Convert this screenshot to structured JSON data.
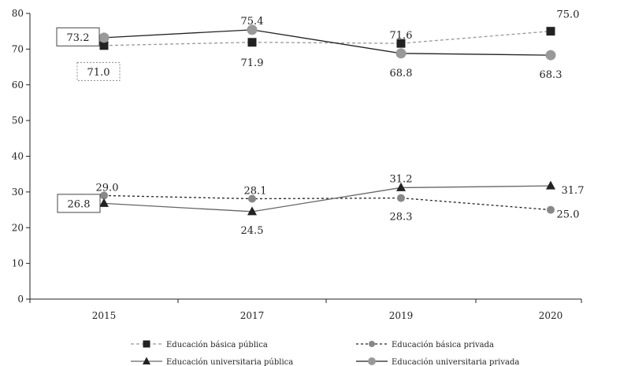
{
  "chart_data": {
    "type": "line",
    "title": "",
    "xlabel": "",
    "ylabel": "",
    "categories": [
      "2015",
      "2017",
      "2019",
      "2020"
    ],
    "ylim": [
      0,
      80
    ],
    "yticks": [
      0,
      10,
      20,
      30,
      40,
      50,
      60,
      70,
      80
    ],
    "grid": false,
    "legend": "bottom",
    "series": [
      {
        "key": "basica_publica",
        "name": "Educación básica pública",
        "values": [
          71.0,
          71.9,
          71.6,
          75.0
        ],
        "labels": [
          "71.0",
          "71.9",
          "71.6",
          "75.0"
        ],
        "color": "#999999",
        "marker": "square",
        "marker_color": "#222222",
        "dash": "4 3"
      },
      {
        "key": "basica_privada",
        "name": "Educación básica privada",
        "values": [
          29.0,
          28.1,
          28.3,
          25.0
        ],
        "labels": [
          "29.0",
          "28.1",
          "28.3",
          "25.0"
        ],
        "color": "#222222",
        "marker": "circle-small",
        "marker_color": "#888888",
        "dash": "3 3"
      },
      {
        "key": "universitaria_publica",
        "name": "Educación universitaria pública",
        "values": [
          26.8,
          24.5,
          31.2,
          31.7
        ],
        "labels": [
          "26.8",
          "24.5",
          "31.2",
          "31.7"
        ],
        "color": "#666666",
        "marker": "triangle",
        "marker_color": "#222222",
        "dash": ""
      },
      {
        "key": "universitaria_privada",
        "name": "Educación universitaria privada",
        "values": [
          73.2,
          75.4,
          68.8,
          68.3
        ],
        "labels": [
          "73.2",
          "75.4",
          "68.8",
          "68.3"
        ],
        "color": "#222222",
        "marker": "circle",
        "marker_color": "#999999",
        "dash": ""
      }
    ]
  }
}
